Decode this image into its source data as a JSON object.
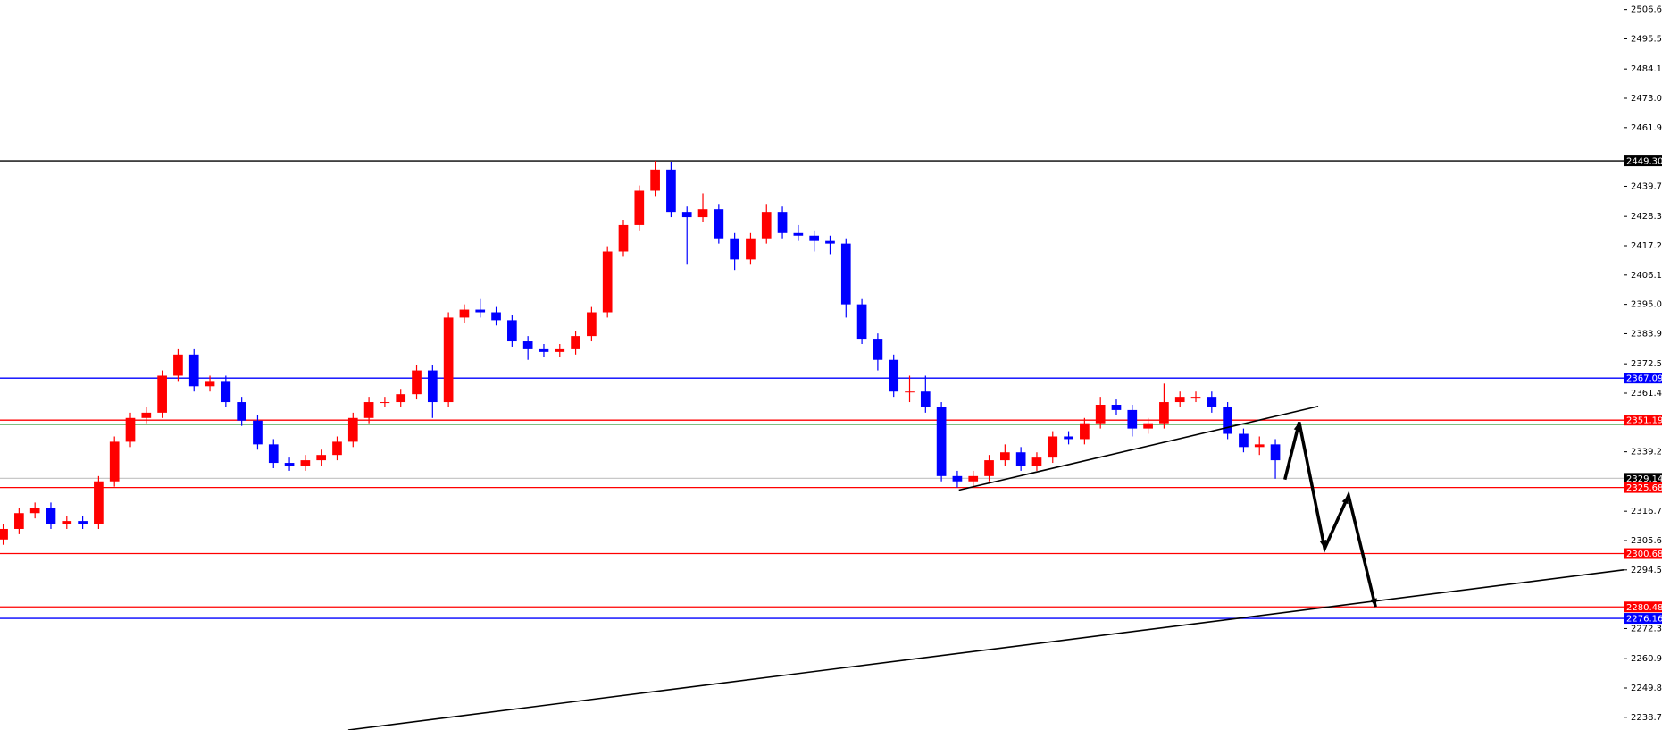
{
  "chart_data": {
    "type": "candlestick",
    "colors": {
      "up": "#ff0000",
      "down": "#0000ff"
    },
    "xlim": [
      -0.2,
      101.9
    ],
    "ylim": [
      2233.9,
      2510.2
    ],
    "yticks": [
      {
        "value": 2506.6,
        "label": "2506.60"
      },
      {
        "value": 2495.5,
        "label": "2495.50"
      },
      {
        "value": 2484.1,
        "label": "2484.10"
      },
      {
        "value": 2473,
        "label": "2473.00"
      },
      {
        "value": 2461.9,
        "label": "2461.90"
      },
      {
        "value": 2439.7,
        "label": "2439.70"
      },
      {
        "value": 2428.3,
        "label": "2428.30"
      },
      {
        "value": 2417.2,
        "label": "2417.20"
      },
      {
        "value": 2406.1,
        "label": "2406.10"
      },
      {
        "value": 2395,
        "label": "2395.00"
      },
      {
        "value": 2383.9,
        "label": "2383.90"
      },
      {
        "value": 2372.5,
        "label": "2372.50"
      },
      {
        "value": 2361.4,
        "label": "2361.40"
      },
      {
        "value": 2339.2,
        "label": "2339.20"
      },
      {
        "value": 2316.7,
        "label": "2316.70"
      },
      {
        "value": 2305.6,
        "label": "2305.60"
      },
      {
        "value": 2294.5,
        "label": "2294.50"
      },
      {
        "value": 2272.3,
        "label": "2272.30"
      },
      {
        "value": 2260.9,
        "label": "2260.90"
      },
      {
        "value": 2249.8,
        "label": "2249.80"
      },
      {
        "value": 2238.7,
        "label": "2238.70"
      }
    ],
    "open": [
      2306,
      2310,
      2316,
      2318,
      2312,
      2313,
      2312,
      2328,
      2343,
      2352,
      2354,
      2368,
      2376,
      2364,
      2366,
      2358,
      2351,
      2342,
      2335,
      2334,
      2336,
      2338,
      2343,
      2352,
      2358,
      2358,
      2361,
      2370,
      2358,
      2390,
      2393,
      2392,
      2389,
      2381,
      2378,
      2377,
      2378,
      2383,
      2392,
      2415,
      2425,
      2438,
      2446,
      2430,
      2428,
      2431,
      2420,
      2412,
      2420,
      2430,
      2422,
      2421,
      2419,
      2418,
      2395,
      2382,
      2374,
      2362,
      2362,
      2356,
      2330,
      2328,
      2330,
      2336,
      2339,
      2334,
      2337,
      2345,
      2344,
      2350,
      2357,
      2355,
      2348,
      2350,
      2358,
      2360,
      2360,
      2356,
      2346,
      2341,
      2342
    ],
    "high": [
      2312,
      2318,
      2320,
      2320,
      2315,
      2315,
      2330,
      2345,
      2354,
      2356,
      2370,
      2378,
      2378,
      2368,
      2368,
      2360,
      2353,
      2344,
      2337,
      2338,
      2340,
      2345,
      2354,
      2360,
      2360,
      2363,
      2372,
      2372,
      2392,
      2395,
      2397,
      2394,
      2391,
      2383,
      2380,
      2380,
      2385,
      2394,
      2417,
      2427,
      2440,
      2449.3,
      2449,
      2432,
      2437,
      2433,
      2422,
      2422,
      2433,
      2432,
      2425,
      2423,
      2421,
      2420,
      2397,
      2384,
      2376,
      2368,
      2368,
      2358,
      2332,
      2332,
      2338,
      2342,
      2341,
      2339,
      2347,
      2347,
      2352,
      2360,
      2359,
      2357,
      2352,
      2365,
      2362,
      2362,
      2362,
      2358,
      2348,
      2345,
      2344
    ],
    "low": [
      2304,
      2308,
      2314,
      2310,
      2310,
      2310,
      2310,
      2326,
      2341,
      2350,
      2352,
      2366,
      2362,
      2362,
      2356,
      2349,
      2340,
      2333,
      2332,
      2332,
      2334,
      2336,
      2341,
      2350,
      2356,
      2356,
      2359,
      2352,
      2356,
      2388,
      2390,
      2387,
      2379,
      2374,
      2375,
      2375,
      2376,
      2381,
      2390,
      2413,
      2423,
      2436,
      2428,
      2410,
      2426,
      2418,
      2408,
      2410,
      2418,
      2420,
      2419,
      2415,
      2414,
      2390,
      2380,
      2370,
      2360,
      2358,
      2354,
      2328,
      2325.7,
      2326,
      2328,
      2334,
      2332,
      2332,
      2335,
      2342,
      2342,
      2348,
      2353,
      2345,
      2346,
      2348,
      2356,
      2358,
      2354,
      2344,
      2339,
      2338,
      2329
    ],
    "close": [
      2310,
      2316,
      2318,
      2312,
      2313,
      2312,
      2328,
      2343,
      2352,
      2354,
      2368,
      2376,
      2364,
      2366,
      2358,
      2351,
      2342,
      2335,
      2334,
      2336,
      2338,
      2343,
      2352,
      2358,
      2358,
      2361,
      2370,
      2358,
      2390,
      2393,
      2392,
      2389,
      2381,
      2378,
      2377,
      2378,
      2383,
      2392,
      2415,
      2425,
      2438,
      2446,
      2430,
      2428,
      2431,
      2420,
      2412,
      2420,
      2430,
      2422,
      2421,
      2419,
      2418,
      2395,
      2382,
      2374,
      2362,
      2362,
      2356,
      2330,
      2328,
      2330,
      2336,
      2339,
      2334,
      2337,
      2345,
      2344,
      2350,
      2357,
      2355,
      2348,
      2350,
      2358,
      2360,
      2360,
      2356,
      2346,
      2341,
      2342,
      2336
    ],
    "levels": [
      {
        "value": 2449.3,
        "label": "2449.30",
        "color": "#000000"
      },
      {
        "value": 2367.09,
        "label": "2367.09",
        "color": "#0000ff"
      },
      {
        "value": 2351.19,
        "label": "2351.19",
        "color": "#ff0000"
      },
      {
        "value": 2349.6,
        "color": "#008000"
      },
      {
        "value": 2329.14,
        "label": "2329.14",
        "color": "#c8c8c8",
        "label_color": "#000000"
      },
      {
        "value": 2325.68,
        "label": "2325.68",
        "color": "#ff0000"
      },
      {
        "value": 2300.68,
        "label": "2300.68",
        "color": "#ff0000"
      },
      {
        "value": 2280.48,
        "label": "2280.48",
        "color": "#ff0000"
      },
      {
        "value": 2276.16,
        "label": "2276.16",
        "color": "#0000ff"
      }
    ],
    "trendlines": [
      {
        "x": [
          60.1,
          82.7
        ],
        "y": [
          2324.7,
          2356.4
        ]
      },
      {
        "x": [
          21.7,
          101.9
        ],
        "y": [
          2233.9,
          2294.5
        ]
      }
    ],
    "projection": {
      "x": [
        80.6,
        81.5,
        83.1,
        84.6,
        86.3
      ],
      "y": [
        2328.7,
        2350.4,
        2302.6,
        2322.7,
        2280.5
      ]
    }
  }
}
